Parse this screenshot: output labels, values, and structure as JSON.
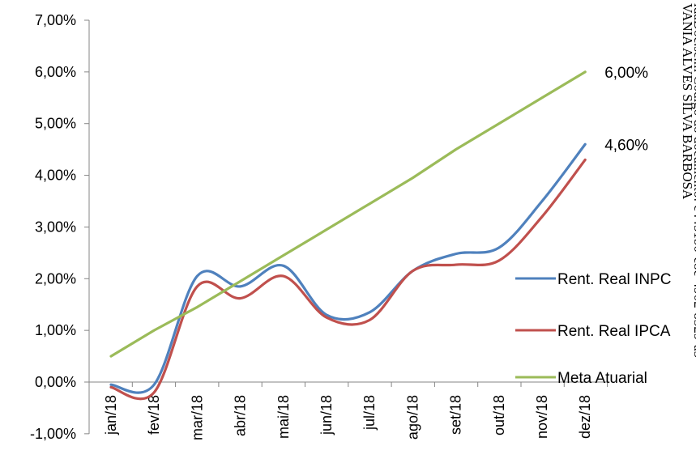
{
  "chart_data": {
    "type": "line",
    "categories": [
      "jan/18",
      "fev/18",
      "mar/18",
      "abr/18",
      "mai/18",
      "jun/18",
      "jul/18",
      "ago/18",
      "set/18",
      "out/18",
      "nov/18",
      "dez/18"
    ],
    "ylim": [
      -1,
      7
    ],
    "yticks": [
      -1,
      0,
      1,
      2,
      3,
      4,
      5,
      6,
      7
    ],
    "ytick_labels": [
      "-1,00%",
      "0,00%",
      "1,00%",
      "2,00%",
      "3,00%",
      "4,00%",
      "5,00%",
      "6,00%",
      "7,00%"
    ],
    "series": [
      {
        "name": "Rent. Real INPC",
        "color": "#4F81BD",
        "smooth": true,
        "values": [
          -0.05,
          -0.05,
          2.05,
          1.85,
          2.25,
          1.3,
          1.35,
          2.15,
          2.48,
          2.6,
          3.5,
          4.6
        ]
      },
      {
        "name": "Rent. Real IPCA",
        "color": "#C0504D",
        "smooth": true,
        "values": [
          -0.1,
          -0.2,
          1.85,
          1.62,
          2.05,
          1.25,
          1.2,
          2.15,
          2.27,
          2.35,
          3.2,
          4.3
        ]
      },
      {
        "name": "Meta Atuarial",
        "color": "#9BBB59",
        "smooth": false,
        "values": [
          0.5,
          1.0,
          1.45,
          1.95,
          2.45,
          2.95,
          3.45,
          3.95,
          4.5,
          5.0,
          5.5,
          6.0
        ]
      }
    ],
    "data_labels": [
      {
        "series": 2,
        "index": 11,
        "text": "6,00%"
      },
      {
        "series": 0,
        "index": 11,
        "text": "4,60%"
      }
    ],
    "legend_position": "right",
    "grid": false
  },
  "stamp": {
    "lines": [
      "VANIA ALVES SILVA BARBOSA",
      "idaDoc.se.m Código do documento: c4451b0-c8c-4902-8329-a5"
    ]
  }
}
